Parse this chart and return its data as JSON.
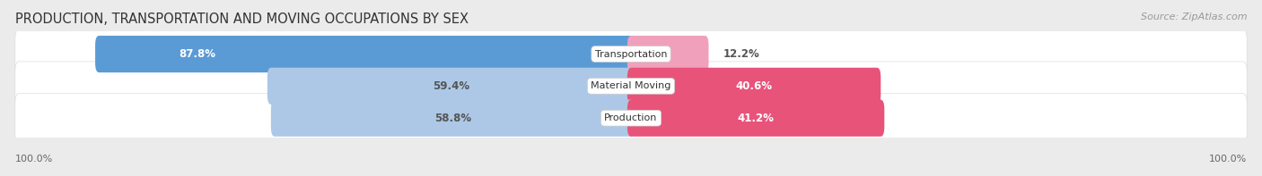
{
  "title": "PRODUCTION, TRANSPORTATION AND MOVING OCCUPATIONS BY SEX",
  "source": "Source: ZipAtlas.com",
  "categories": [
    "Transportation",
    "Material Moving",
    "Production"
  ],
  "male_values": [
    87.8,
    59.4,
    58.8
  ],
  "female_values": [
    12.2,
    40.6,
    41.2
  ],
  "male_colors": [
    "#5b9bd5",
    "#adc8e6",
    "#adc8e6"
  ],
  "female_colors": [
    "#f0a0bb",
    "#e8537a",
    "#e8537a"
  ],
  "bg_color": "#ebebeb",
  "row_bg_color": "#f7f7f7",
  "title_fontsize": 10.5,
  "source_fontsize": 8,
  "label_fontsize": 8.5,
  "cat_fontsize": 8,
  "axis_label_fontsize": 8,
  "legend_fontsize": 8.5,
  "male_label_color_dark": [
    "#ffffff",
    "#555555",
    "#555555"
  ],
  "female_label_color_dark": [
    "#555555",
    "#ffffff",
    "#ffffff"
  ]
}
